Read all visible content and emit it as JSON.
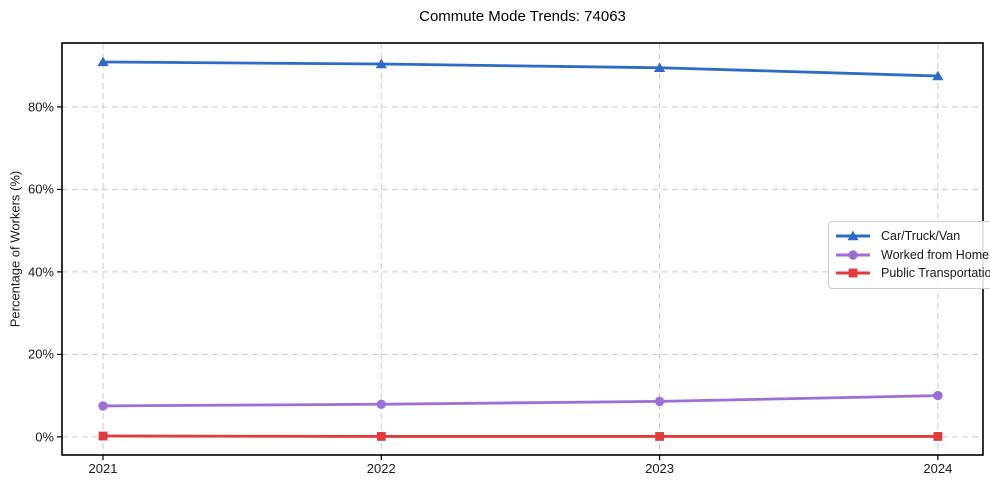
{
  "title": "Commute Mode Trends: 74063",
  "chart_data": {
    "type": "line",
    "title": "Commute Mode Trends: 74063",
    "xlabel": "",
    "ylabel": "Percentage of Workers (%)",
    "categories": [
      "2021",
      "2022",
      "2023",
      "2024"
    ],
    "series": [
      {
        "name": "Car/Truck/Van",
        "values": [
          90.9,
          90.4,
          89.5,
          87.5
        ],
        "color": "#2d6bc4",
        "marker": "triangle"
      },
      {
        "name": "Worked from Home",
        "values": [
          7.5,
          7.9,
          8.6,
          10.0
        ],
        "color": "#9b6fd6",
        "marker": "circle"
      },
      {
        "name": "Public Transportation",
        "values": [
          0.2,
          0.1,
          0.1,
          0.1
        ],
        "color": "#e23b3b",
        "marker": "square"
      }
    ],
    "ytick_labels": [
      "0%",
      "20%",
      "40%",
      "60%",
      "80%"
    ],
    "ytick_values": [
      0,
      20,
      40,
      60,
      80
    ],
    "ylim": [
      -4.4,
      95.5
    ],
    "grid": "dashed",
    "grid_color": "#c9c9c9",
    "frame_color": "#000000",
    "legend_position": "center right"
  }
}
